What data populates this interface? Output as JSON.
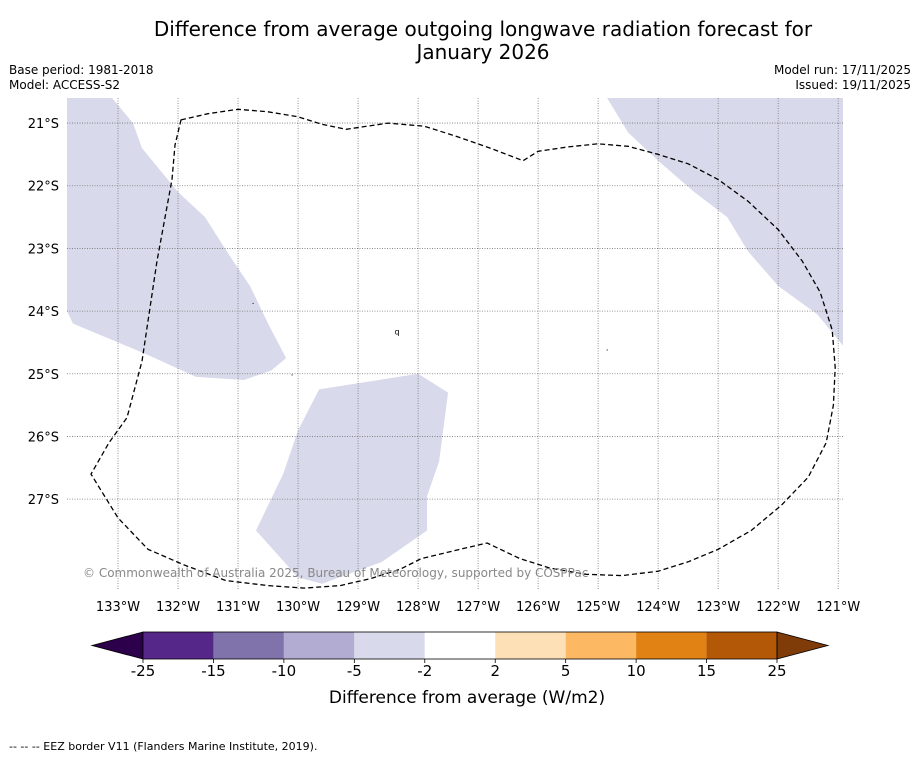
{
  "title_line1": "Difference from average outgoing longwave radiation forecast for",
  "title_line2": "January 2026",
  "base_period": "Base period: 1981-2018",
  "model": "Model: ACCESS-S2",
  "model_run": "Model run: 17/11/2025",
  "issued": "Issued: 19/11/2025",
  "copyright": "© Commonwealth of Australia 2025, Bureau of Meteorology, supported by COSPPac",
  "footer": "--  --  -- EEZ border V11 (Flanders Marine Institute, 2019).",
  "colors": {
    "under": "#2d004b",
    "bins": [
      "#542788",
      "#8073ac",
      "#b2abd2",
      "#d8daeb",
      "#ffffff",
      "#fee0b6",
      "#fdb863",
      "#e08214",
      "#b35806"
    ],
    "over": "#7f3b08",
    "shade": "#d8daeb"
  },
  "chart_data": {
    "type": "heatmap",
    "title": "Difference from average outgoing longwave radiation forecast for January 2026",
    "xlim": [
      -133.85,
      -120.92
    ],
    "ylim": [
      -28.45,
      -20.6
    ],
    "x_ticks": [
      -133,
      -132,
      -131,
      -130,
      -129,
      -128,
      -127,
      -126,
      -125,
      -124,
      -123,
      -122,
      -121
    ],
    "y_ticks": [
      -21,
      -22,
      -23,
      -24,
      -25,
      -26,
      -27
    ],
    "x_tick_labels": [
      "133°W",
      "132°W",
      "131°W",
      "130°W",
      "129°W",
      "128°W",
      "127°W",
      "126°W",
      "125°W",
      "124°W",
      "123°W",
      "122°W",
      "121°W"
    ],
    "y_tick_labels": [
      "21°S",
      "22°S",
      "23°S",
      "24°S",
      "25°S",
      "26°S",
      "27°S"
    ],
    "grid": true,
    "legend": "bottom colorbar",
    "colorbar": {
      "label": "Difference from average (W/m2)",
      "boundaries": [
        -25,
        -15,
        -10,
        -5,
        -2,
        2,
        5,
        10,
        15,
        25
      ],
      "tick_labels": [
        "-25",
        "-15",
        "-10",
        "-5",
        "-2",
        "2",
        "5",
        "10",
        "15",
        "25"
      ],
      "extend": "both"
    },
    "regions": [
      {
        "name": "west",
        "category": "-5 to -2",
        "polygon": [
          [
            -133.85,
            -20.6
          ],
          [
            -133.1,
            -20.6
          ],
          [
            -132.75,
            -21.0
          ],
          [
            -132.6,
            -21.4
          ],
          [
            -132.0,
            -22.1
          ],
          [
            -131.55,
            -22.5
          ],
          [
            -131.15,
            -23.1
          ],
          [
            -130.8,
            -23.6
          ],
          [
            -130.5,
            -24.2
          ],
          [
            -130.2,
            -24.75
          ],
          [
            -130.45,
            -24.95
          ],
          [
            -130.9,
            -25.1
          ],
          [
            -131.7,
            -25.05
          ],
          [
            -132.5,
            -24.7
          ],
          [
            -133.0,
            -24.5
          ],
          [
            -133.75,
            -24.2
          ],
          [
            -133.85,
            -24.0
          ]
        ]
      },
      {
        "name": "south",
        "category": "-5 to -2",
        "polygon": [
          [
            -129.65,
            -25.25
          ],
          [
            -128.0,
            -25.0
          ],
          [
            -127.5,
            -25.3
          ],
          [
            -127.65,
            -26.4
          ],
          [
            -127.85,
            -26.95
          ],
          [
            -127.85,
            -27.5
          ],
          [
            -128.6,
            -28.0
          ],
          [
            -129.6,
            -28.35
          ],
          [
            -130.0,
            -28.25
          ],
          [
            -130.7,
            -27.5
          ],
          [
            -130.25,
            -26.6
          ],
          [
            -130.0,
            -25.9
          ]
        ]
      },
      {
        "name": "east",
        "category": "-5 to -2",
        "polygon": [
          [
            -124.85,
            -20.6
          ],
          [
            -120.92,
            -20.6
          ],
          [
            -120.92,
            -24.55
          ],
          [
            -121.35,
            -24.05
          ],
          [
            -122.0,
            -23.6
          ],
          [
            -122.5,
            -23.05
          ],
          [
            -122.85,
            -22.5
          ],
          [
            -123.4,
            -22.1
          ],
          [
            -124.0,
            -21.6
          ],
          [
            -124.5,
            -21.15
          ]
        ]
      }
    ],
    "eez_border": [
      [
        -131.95,
        -20.95
      ],
      [
        -131.5,
        -20.85
      ],
      [
        -131.0,
        -20.78
      ],
      [
        -130.5,
        -20.82
      ],
      [
        -130.0,
        -20.9
      ],
      [
        -129.6,
        -21.02
      ],
      [
        -129.2,
        -21.1
      ],
      [
        -128.5,
        -21.0
      ],
      [
        -127.9,
        -21.05
      ],
      [
        -127.4,
        -21.2
      ],
      [
        -126.8,
        -21.4
      ],
      [
        -126.25,
        -21.6
      ],
      [
        -126.0,
        -21.45
      ],
      [
        -125.5,
        -21.38
      ],
      [
        -125.0,
        -21.33
      ],
      [
        -124.5,
        -21.37
      ],
      [
        -124.0,
        -21.5
      ],
      [
        -123.5,
        -21.65
      ],
      [
        -123.0,
        -21.9
      ],
      [
        -122.5,
        -22.25
      ],
      [
        -122.0,
        -22.7
      ],
      [
        -121.6,
        -23.2
      ],
      [
        -121.3,
        -23.7
      ],
      [
        -121.1,
        -24.3
      ],
      [
        -121.05,
        -24.9
      ],
      [
        -121.08,
        -25.5
      ],
      [
        -121.2,
        -26.1
      ],
      [
        -121.5,
        -26.65
      ],
      [
        -121.95,
        -27.1
      ],
      [
        -122.45,
        -27.5
      ],
      [
        -123.0,
        -27.8
      ],
      [
        -123.5,
        -28.0
      ],
      [
        -124.0,
        -28.15
      ],
      [
        -124.6,
        -28.22
      ],
      [
        -125.2,
        -28.2
      ],
      [
        -125.8,
        -28.1
      ],
      [
        -126.3,
        -27.95
      ],
      [
        -126.85,
        -27.7
      ],
      [
        -127.3,
        -27.8
      ],
      [
        -127.95,
        -27.95
      ],
      [
        -128.3,
        -28.12
      ],
      [
        -128.8,
        -28.27
      ],
      [
        -129.3,
        -28.38
      ],
      [
        -129.9,
        -28.42
      ],
      [
        -130.5,
        -28.38
      ],
      [
        -131.2,
        -28.3
      ],
      [
        -131.9,
        -28.05
      ],
      [
        -132.5,
        -27.8
      ],
      [
        -133.0,
        -27.3
      ],
      [
        -133.45,
        -26.6
      ],
      [
        -133.15,
        -26.1
      ],
      [
        -132.85,
        -25.7
      ],
      [
        -132.6,
        -24.8
      ],
      [
        -132.35,
        -23.2
      ],
      [
        -132.1,
        -21.9
      ],
      [
        -132.05,
        -21.35
      ]
    ],
    "annotations": [
      {
        "text": "q",
        "lon": -128.35,
        "lat": -24.37
      },
      {
        "text": "·",
        "lon": -130.75,
        "lat": -23.93
      },
      {
        "text": "·",
        "lon": -124.85,
        "lat": -24.67
      },
      {
        "text": "·",
        "lon": -130.1,
        "lat": -25.07
      }
    ]
  }
}
